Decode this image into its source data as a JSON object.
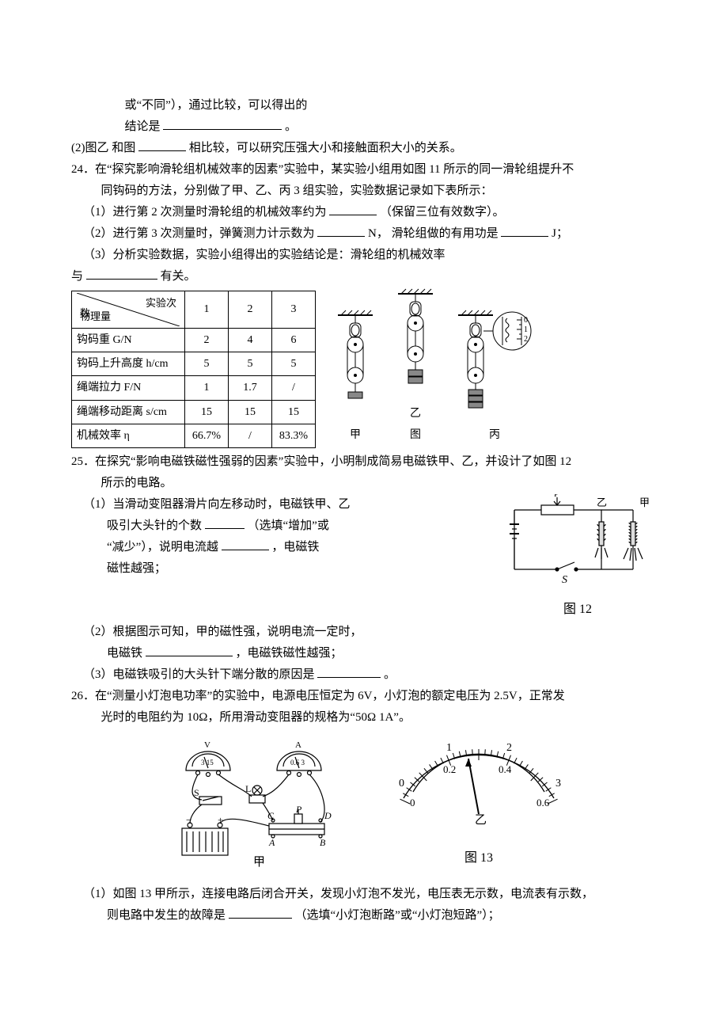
{
  "q23": {
    "line1_a": "或“不同”），通过比较，可以得出的",
    "line2_a": "结论是",
    "line2_b": "。",
    "blank1_width": 150,
    "part2_a": "(2)图乙  和图 ",
    "part2_b": "相比较，可以研究压强大小和接触面积大小的关系。",
    "blank2_width": 60
  },
  "q24": {
    "stem_a": "24．在“探究影响滑轮组机械效率的因素”实验中，某实验小组用如图 11 所示的同一滑轮组提升不",
    "stem_b": "同钩码的方法，分别做了甲、乙、丙 3 组实验，实验数据记录如下表所示：",
    "p1_a": "（1）进行第 2 次测量时滑轮组的机械效率约为",
    "p1_b": "（保留三位有效数字）。",
    "p1_blank": 60,
    "p2_a": "（2）进行第 3 次测量时，弹簧测力计示数为",
    "p2_b": "N， 滑轮组做的有用功是",
    "p2_c": "J；",
    "p2_blank1": 60,
    "p2_blank2": 60,
    "p3_a": "（3）分析实验数据，实验小组得出的实验结论是：滑轮组的机械效率",
    "p3_b": "与",
    "p3_c": "有关。",
    "p3_blank": 90,
    "table": {
      "diag_top": "实验次",
      "diag_mid": "数",
      "diag_bot": "物理量",
      "cols": [
        "1",
        "2",
        "3"
      ],
      "rows": [
        {
          "label": "钩码重 G/N",
          "vals": [
            "2",
            "4",
            "6"
          ]
        },
        {
          "label": "钩码上升高度 h/cm",
          "vals": [
            "5",
            "5",
            "5"
          ]
        },
        {
          "label": "绳端拉力 F/N",
          "vals": [
            "1",
            "1.7",
            "/"
          ]
        },
        {
          "label": "绳端移动距离 s/cm",
          "vals": [
            "15",
            "15",
            "15"
          ]
        },
        {
          "label": "机械效率 η",
          "vals": [
            "66.7%",
            "/",
            "83.3%"
          ]
        }
      ]
    },
    "fig": {
      "labels": [
        "甲",
        "乙",
        "丙"
      ],
      "row_label": "图"
    }
  },
  "q25": {
    "stem_a": "25．在探究“影响电磁铁磁性强弱的因素”实验中，小明制成简易电磁铁甲、乙，并设计了如图 12",
    "stem_b": "所示的电路。",
    "p1_a": "（1）当滑动变阻器滑片向左移动时，电磁铁甲、乙",
    "p1_b": "吸引大头针的个数",
    "p1_c": "（选填“增加”或",
    "p1_d": "“减少”），说明电流越",
    "p1_e": "，电磁铁",
    "p1_f": "磁性越强；",
    "p1_blank1": 50,
    "p1_blank2": 60,
    "p2_a": "（2）根据图示可知，甲的磁性强，说明电流一定时，",
    "p2_b": "电磁铁",
    "p2_c": "，电磁铁磁性越强；",
    "p2_blank": 110,
    "p3_a": "（3）电磁铁吸引的大头针下端分散的原因是",
    "p3_b": "。",
    "p3_blank": 80,
    "fig_label": "图 12",
    "coil_labels": {
      "left": "乙",
      "right": "甲"
    },
    "switch_label": "S"
  },
  "q26": {
    "stem_a": "26．在“测量小灯泡电功率”的实验中，电源电压恒定为 6V，小灯泡的额定电压为 2.5V，正常发",
    "stem_b": "光时的电阻约为 10Ω，所用滑动变阻器的规格为“50Ω  1A”。",
    "fig_label": "图 13",
    "left_label": "甲",
    "right_label": "乙",
    "circuit": {
      "voltmeter_scale": "3 15",
      "ammeter_scale": "0.6 3",
      "switch": "S",
      "bulb": "L",
      "nodes": [
        "A",
        "B",
        "C",
        "D",
        "P"
      ],
      "battery": [
        "−",
        "+"
      ]
    },
    "meter": {
      "top_ticks": [
        "0",
        "1",
        "2",
        "3"
      ],
      "bot_ticks": [
        "0",
        "0.2",
        "0.4",
        "0.6"
      ]
    },
    "p1_a": "（1）如图 13 甲所示，连接电路后闭合开关，发现小灯泡不发光，电压表无示数，电流表有示数，",
    "p1_b": "则电路中发生的故障是",
    "p1_c": "（选填“小灯泡断路”或“小灯泡短路”）；",
    "p1_blank": 80
  }
}
